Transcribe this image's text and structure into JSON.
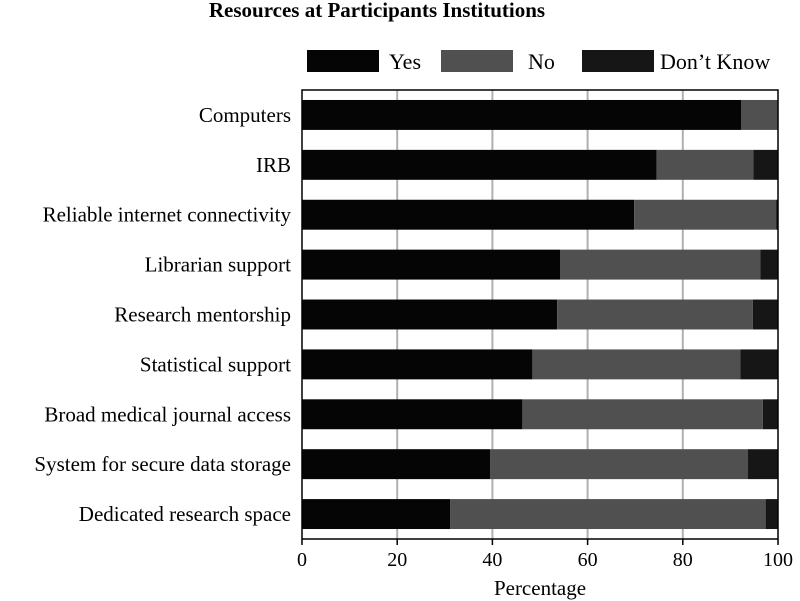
{
  "chart_data": {
    "type": "bar",
    "orientation": "horizontal",
    "stacked": true,
    "title": "Resources at Participants Institutions",
    "xlabel": "Percentage",
    "ylabel": "",
    "xlim": [
      0,
      100
    ],
    "xticks": [
      0,
      20,
      40,
      60,
      80,
      100
    ],
    "grid": true,
    "legend_position": "top",
    "categories": [
      "Computers",
      "IRB",
      "Reliable internet connectivity",
      "Librarian support",
      "Research mentorship",
      "Statistical support",
      "Broad medical journal access",
      "System for secure data storage",
      "Dedicated research space"
    ],
    "series": [
      {
        "name": "Yes",
        "color": "#050505",
        "values": [
          92.3,
          74.5,
          69.8,
          54.2,
          53.6,
          48.4,
          46.3,
          39.5,
          31.1
        ]
      },
      {
        "name": "No",
        "color": "#505050",
        "values": [
          7.7,
          20.3,
          29.8,
          42.1,
          41.1,
          43.7,
          50.5,
          54.2,
          66.3
        ]
      },
      {
        "name": "Don’t Know",
        "color": "#161616",
        "values": [
          0.0,
          5.2,
          0.4,
          3.7,
          5.3,
          7.9,
          3.2,
          6.3,
          2.6
        ]
      }
    ]
  }
}
